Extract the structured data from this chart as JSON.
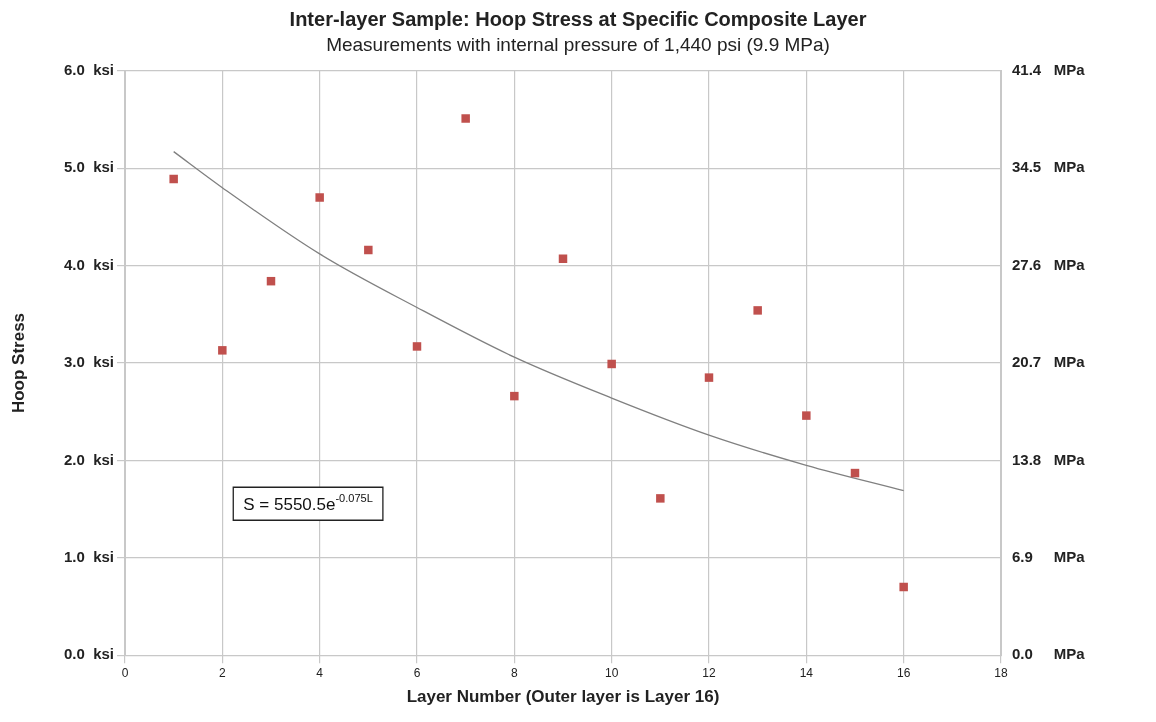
{
  "chart_data": {
    "type": "scatter",
    "title": "Inter-layer Sample: Hoop Stress at Specific Composite Layer",
    "subtitle": "Measurements with internal pressure of 1,440 psi (9.9 MPa)",
    "xlabel": "Layer Number (Outer layer is Layer 16)",
    "ylabel": "Hoop Stress",
    "annotations": [
      "S = 5550.5e$^{-0.075L}$"
    ],
    "series": [
      {
        "color": "#c0504d",
        "x": [
          1,
          2,
          3,
          4,
          5,
          6,
          7,
          8,
          9,
          10,
          11,
          12,
          13,
          14,
          15,
          16
        ],
        "values": [
          4.89,
          3.13,
          3.84,
          4.7,
          4.16,
          3.17,
          5.51,
          2.66,
          4.07,
          2.99,
          1.61,
          2.85,
          3.54,
          2.46,
          1.87,
          0.7
        ]
      },
      {
        "type": "line",
        "color": "#808080",
        "marker": "none",
        "x": [
          1,
          2,
          4,
          6,
          8,
          10,
          12,
          14,
          16
        ],
        "values": [
          5.17,
          4.8,
          4.12,
          3.57,
          3.06,
          2.64,
          2.26,
          1.95,
          1.69
        ]
      }
    ],
    "xlim": [
      0,
      18
    ],
    "xticks": [
      0,
      2,
      4,
      6,
      8,
      10,
      12,
      14,
      16,
      18
    ],
    "ylim": [
      0,
      6
    ],
    "yticks": [
      {
        "value": 0,
        "label": "0.0  ksi"
      },
      {
        "value": 1,
        "label": "1.0  ksi"
      },
      {
        "value": 2,
        "label": "2.0  ksi"
      },
      {
        "value": 3,
        "label": "3.0  ksi"
      },
      {
        "value": 4,
        "label": "4.0  ksi"
      },
      {
        "value": 5,
        "label": "5.0  ksi"
      },
      {
        "value": 6,
        "label": "6.0  ksi"
      }
    ],
    "y2lim": [
      0,
      41.4
    ],
    "y2ticks": [
      {
        "value": 0,
        "label": "0.0     MPa"
      },
      {
        "value": 6.9,
        "label": "6.9     MPa"
      },
      {
        "value": 13.8,
        "label": "13.8   MPa"
      },
      {
        "value": 20.7,
        "label": "20.7   MPa"
      },
      {
        "value": 27.6,
        "label": "27.6   MPa"
      },
      {
        "value": 34.5,
        "label": "34.5   MPa"
      },
      {
        "value": 41.4,
        "label": "41.4   MPa"
      }
    ],
    "grid": true,
    "legend": false,
    "marker": "square"
  }
}
